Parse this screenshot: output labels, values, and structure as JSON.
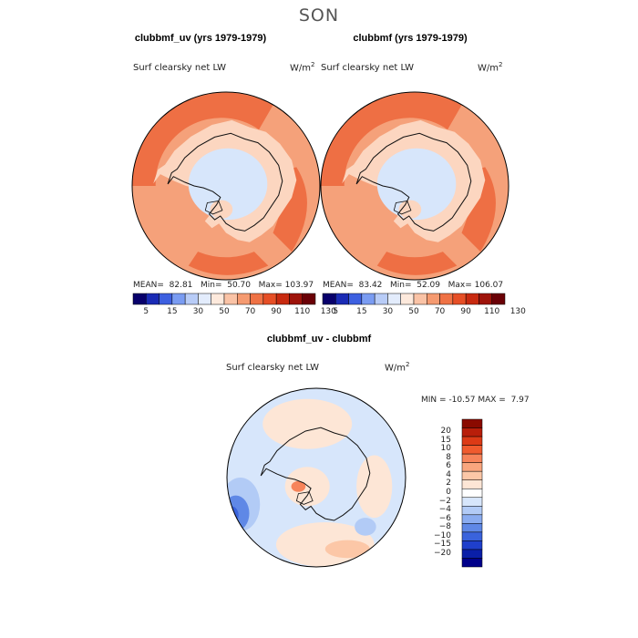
{
  "figure": {
    "season": "SON",
    "unit_base": "W/m",
    "unit_exp": "2"
  },
  "colors": {
    "frame": "#000000",
    "coast": "#111111"
  },
  "chart_data": [
    {
      "type": "heatmap",
      "title": "clubbmf_uv (yrs 1979-1979)",
      "variable": "Surf clearsky net LW",
      "stats": {
        "mean_label": "MEAN=",
        "mean": "82.81",
        "min_label": "Min=",
        "min": "50.70",
        "max_label": "Max=",
        "max": "103.97"
      },
      "colorbar": {
        "levels": [
          "5",
          "15",
          "30",
          "50",
          "70",
          "90",
          "110",
          "130"
        ],
        "colors": [
          "#08006b",
          "#1a2bb5",
          "#3d60e0",
          "#7a9cf2",
          "#b8ccf7",
          "#e3ecfc",
          "#fde9dc",
          "#fac3a6",
          "#f59a70",
          "#ef7245",
          "#e64f26",
          "#c82a10",
          "#9e130a",
          "#6a0006"
        ]
      },
      "regions": [
        {
          "level": "70-90",
          "color": "#f5a17a"
        },
        {
          "level": "90-110",
          "color": "#ee6f44"
        },
        {
          "level": "50-70",
          "color": "#fcd6c0"
        },
        {
          "level": "30-50",
          "color": "#d7e6fb"
        }
      ]
    },
    {
      "type": "heatmap",
      "title": "clubbmf (yrs 1979-1979)",
      "variable": "Surf clearsky net LW",
      "stats": {
        "mean_label": "MEAN=",
        "mean": "83.42",
        "min_label": "Min=",
        "min": "52.09",
        "max_label": "Max=",
        "max": "106.07"
      },
      "colorbar": {
        "levels": [
          "5",
          "15",
          "30",
          "50",
          "70",
          "90",
          "110",
          "130"
        ],
        "colors": [
          "#08006b",
          "#1a2bb5",
          "#3d60e0",
          "#7a9cf2",
          "#b8ccf7",
          "#e3ecfc",
          "#fde9dc",
          "#fac3a6",
          "#f59a70",
          "#ef7245",
          "#e64f26",
          "#c82a10",
          "#9e130a",
          "#6a0006"
        ]
      },
      "regions": [
        {
          "level": "70-90",
          "color": "#f5a17a"
        },
        {
          "level": "90-110",
          "color": "#ee6f44"
        },
        {
          "level": "50-70",
          "color": "#fcd6c0"
        },
        {
          "level": "30-50",
          "color": "#d7e6fb"
        }
      ]
    },
    {
      "type": "heatmap",
      "title": "clubbmf_uv - clubbmf",
      "variable": "Surf clearsky net LW",
      "stats": {
        "min_label": "MIN =",
        "min": "-10.57",
        "max_label": "MAX =",
        "max": "7.97"
      },
      "colorbar": {
        "levels": [
          "20",
          "15",
          "10",
          "8",
          "6",
          "4",
          "2",
          "0",
          "−2",
          "−4",
          "−6",
          "−8",
          "−10",
          "−15",
          "−20"
        ],
        "colors": [
          "#8a0a00",
          "#b81e0a",
          "#dc3a16",
          "#f05b2e",
          "#f7845a",
          "#f9a67e",
          "#fcc7a7",
          "#fde6d6",
          "#ffffff",
          "#d7e6fb",
          "#b2cbf6",
          "#8aacf0",
          "#5f88e6",
          "#3a63dc",
          "#1f3fcc",
          "#0a1fa8",
          "#00008a"
        ]
      },
      "regions": [
        {
          "level": "0 to -2",
          "color": "#d7e6fb"
        },
        {
          "level": "0 to 2",
          "color": "#fde6d6"
        },
        {
          "level": "-2 to -4",
          "color": "#b2cbf6"
        },
        {
          "level": "2 to 4",
          "color": "#fcc7a7"
        },
        {
          "level": "-6 to -8",
          "color": "#5f88e6"
        },
        {
          "level": "-8 to -10",
          "color": "#3a63dc"
        },
        {
          "level": "4 to 6",
          "color": "#f7845a"
        }
      ]
    }
  ]
}
